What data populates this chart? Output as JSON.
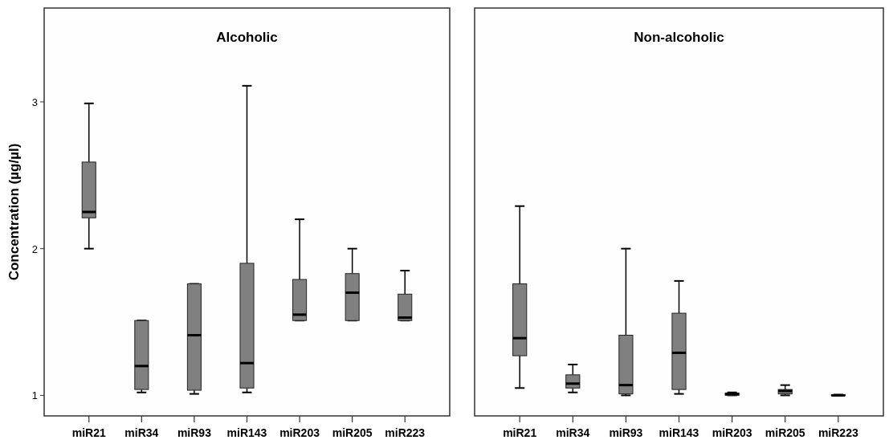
{
  "chart_data": [
    {
      "type": "box",
      "title": "Alcoholic",
      "ylabel": "Concentration (µg/µl)",
      "categories": [
        "miR21",
        "miR34",
        "miR93",
        "miR143",
        "miR203",
        "miR205",
        "miR223"
      ],
      "ylim": [
        0.86,
        3.64
      ],
      "yticks": [
        1,
        2,
        3
      ],
      "color": "#808080",
      "boxes": [
        {
          "low": 2.0,
          "q1": 2.21,
          "median": 2.25,
          "q3": 2.59,
          "high": 2.99
        },
        {
          "low": 1.02,
          "q1": 1.04,
          "median": 1.2,
          "q3": 1.51,
          "high": 1.51
        },
        {
          "low": 1.01,
          "q1": 1.035,
          "median": 1.41,
          "q3": 1.76,
          "high": 1.76
        },
        {
          "low": 1.02,
          "q1": 1.05,
          "median": 1.22,
          "q3": 1.9,
          "high": 3.11
        },
        {
          "low": 1.51,
          "q1": 1.51,
          "median": 1.55,
          "q3": 1.79,
          "high": 2.2
        },
        {
          "low": 1.51,
          "q1": 1.51,
          "median": 1.7,
          "q3": 1.83,
          "high": 2.0
        },
        {
          "low": 1.51,
          "q1": 1.51,
          "median": 1.53,
          "q3": 1.69,
          "high": 1.85
        }
      ]
    },
    {
      "type": "box",
      "title": "Non-alcoholic",
      "categories": [
        "miR21",
        "miR34",
        "miR93",
        "miR143",
        "miR203",
        "miR205",
        "miR223"
      ],
      "ylim": [
        0.86,
        3.64
      ],
      "tick_labels": "x",
      "color": "#808080",
      "boxes": [
        {
          "low": 1.05,
          "q1": 1.27,
          "median": 1.39,
          "q3": 1.76,
          "high": 2.29
        },
        {
          "low": 1.02,
          "q1": 1.05,
          "median": 1.08,
          "q3": 1.14,
          "high": 1.21
        },
        {
          "low": 1.0,
          "q1": 1.01,
          "median": 1.07,
          "q3": 1.41,
          "high": 2.0
        },
        {
          "low": 1.01,
          "q1": 1.04,
          "median": 1.29,
          "q3": 1.56,
          "high": 1.78
        },
        {
          "low": 1.0,
          "q1": 1.0,
          "median": 1.01,
          "q3": 1.015,
          "high": 1.02
        },
        {
          "low": 1.0,
          "q1": 1.01,
          "median": 1.03,
          "q3": 1.04,
          "high": 1.07
        },
        {
          "low": 1.0,
          "q1": 1.0,
          "median": 1.0,
          "q3": 1.005,
          "high": 1.005
        }
      ]
    }
  ]
}
